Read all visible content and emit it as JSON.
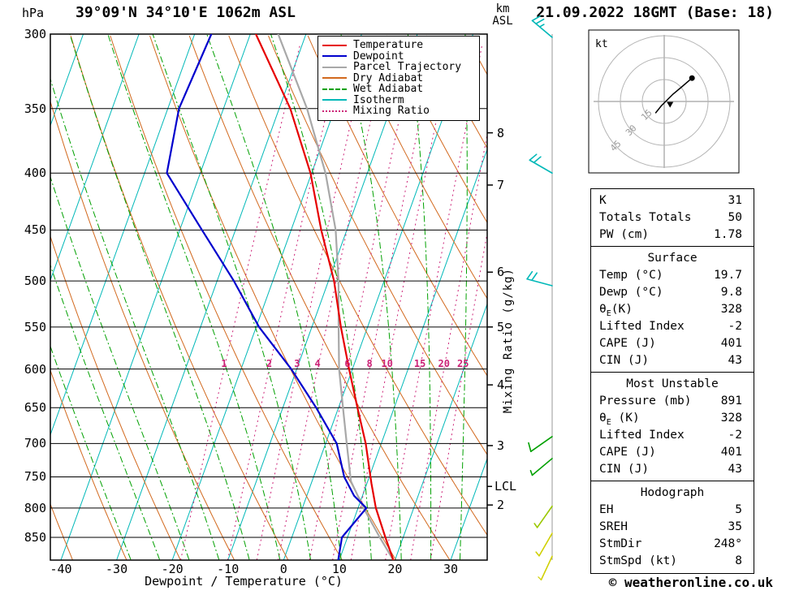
{
  "header": {
    "pressure_unit": "hPa",
    "station": "39°09'N 34°10'E 1062m ASL",
    "km_label": "km",
    "asl_label": "ASL",
    "datetime": "21.09.2022 18GMT (Base: 18)"
  },
  "axes": {
    "pressure_ticks": [
      300,
      350,
      400,
      450,
      500,
      550,
      600,
      650,
      700,
      750,
      800,
      850
    ],
    "temp_ticks": [
      -40,
      -30,
      -20,
      -10,
      0,
      10,
      20,
      30
    ],
    "xlabel": "Dewpoint / Temperature (°C)",
    "lcl_label": "LCL",
    "mixing_axis_label": "Mixing Ratio (g/kg)"
  },
  "colors": {
    "temperature": "#e60000",
    "dewpoint": "#0000cd",
    "parcel": "#a8a8a8",
    "dry_adiabat": "#d2691e",
    "wet_adiabat": "#00a000",
    "isotherm": "#00b8b8",
    "mixing_ratio": "#cc2277",
    "pressure_line": "#000000",
    "wind_axis": "#999999"
  },
  "legend": {
    "entries": [
      {
        "label": "Temperature",
        "color": "#e60000",
        "style": "solid"
      },
      {
        "label": "Dewpoint",
        "color": "#0000cd",
        "style": "solid"
      },
      {
        "label": "Parcel Trajectory",
        "color": "#a8a8a8",
        "style": "solid"
      },
      {
        "label": "Dry Adiabat",
        "color": "#d2691e",
        "style": "solid"
      },
      {
        "label": "Wet Adiabat",
        "color": "#00a000",
        "style": "dashdot"
      },
      {
        "label": "Isotherm",
        "color": "#00b8b8",
        "style": "solid"
      },
      {
        "label": "Mixing Ratio",
        "color": "#cc2277",
        "style": "dotted"
      }
    ]
  },
  "chart_data": {
    "type": "skewt_log_p",
    "pressure_range_hpa": [
      300,
      891
    ],
    "temp_axis_range_c": [
      -40,
      30
    ],
    "temperature_profile": [
      [
        891,
        19.7
      ],
      [
        850,
        16.8
      ],
      [
        800,
        13.2
      ],
      [
        760,
        10.8
      ],
      [
        700,
        7.2
      ],
      [
        650,
        3.4
      ],
      [
        600,
        -0.6
      ],
      [
        550,
        -4.8
      ],
      [
        500,
        -9.0
      ],
      [
        450,
        -14.6
      ],
      [
        400,
        -20.2
      ],
      [
        350,
        -28.0
      ],
      [
        300,
        -39.0
      ]
    ],
    "dewpoint_profile": [
      [
        891,
        9.8
      ],
      [
        850,
        9.0
      ],
      [
        800,
        11.5
      ],
      [
        780,
        8.5
      ],
      [
        750,
        5.5
      ],
      [
        700,
        2.0
      ],
      [
        650,
        -4.0
      ],
      [
        600,
        -11.0
      ],
      [
        550,
        -19.5
      ],
      [
        500,
        -27.0
      ],
      [
        450,
        -36.0
      ],
      [
        400,
        -46.0
      ],
      [
        350,
        -48.0
      ],
      [
        300,
        -47.0
      ]
    ],
    "parcel_profile": [
      [
        891,
        19.7
      ],
      [
        850,
        15.8
      ],
      [
        800,
        11.0
      ],
      [
        757,
        7.0
      ],
      [
        700,
        3.8
      ],
      [
        650,
        0.8
      ],
      [
        600,
        -2.4
      ],
      [
        550,
        -5.2
      ],
      [
        500,
        -8.2
      ],
      [
        450,
        -12.0
      ],
      [
        400,
        -17.5
      ],
      [
        350,
        -25.0
      ],
      [
        300,
        -35.0
      ]
    ],
    "lcl_pressure": 765,
    "km_levels": [
      [
        8,
        368
      ],
      [
        7,
        410
      ],
      [
        6,
        491
      ],
      [
        5,
        550
      ],
      [
        4,
        620
      ],
      [
        3,
        703
      ],
      [
        2,
        795
      ]
    ],
    "isotherms_c": {
      "min": -110,
      "max": 40,
      "step": 10
    },
    "dry_adiabats_theta_c": {
      "min": -40,
      "max": 120,
      "step": 10
    },
    "wet_adiabats_thetaw_c": {
      "min": -20,
      "max": 40,
      "step": 5
    },
    "mixing_ratio_lines_gkg": [
      1,
      2,
      3,
      4,
      6,
      8,
      10,
      15,
      20,
      25
    ],
    "mixing_ratio_label_pressure": 600
  },
  "winds": {
    "barbs": [
      {
        "pressure": 302,
        "speed_kt": 25,
        "dir_deg": 310,
        "color": "#00b8b8"
      },
      {
        "pressure": 400,
        "speed_kt": 20,
        "dir_deg": 300,
        "color": "#00b8b8"
      },
      {
        "pressure": 505,
        "speed_kt": 20,
        "dir_deg": 285,
        "color": "#00b8b8"
      },
      {
        "pressure": 690,
        "speed_kt": 10,
        "dir_deg": 235,
        "color": "#00a000"
      },
      {
        "pressure": 722,
        "speed_kt": 8,
        "dir_deg": 230,
        "color": "#00a000"
      },
      {
        "pressure": 797,
        "speed_kt": 5,
        "dir_deg": 215,
        "color": "#9ac800"
      },
      {
        "pressure": 843,
        "speed_kt": 5,
        "dir_deg": 210,
        "color": "#d0d000"
      },
      {
        "pressure": 884,
        "speed_kt": 3,
        "dir_deg": 205,
        "color": "#d0d000"
      }
    ]
  },
  "hodograph": {
    "unit_label": "kt",
    "rings_kt": [
      15,
      30,
      45
    ],
    "trace_uv_kt": [
      [
        -6,
        -8
      ],
      [
        -2,
        -3
      ],
      [
        1,
        0
      ],
      [
        6,
        5
      ],
      [
        12,
        10
      ],
      [
        19,
        16
      ]
    ],
    "storm_motion_uv_kt": [
      4,
      -2
    ]
  },
  "tables": [
    {
      "title": "",
      "rows": [
        [
          "K",
          "31"
        ],
        [
          "Totals Totals",
          "50"
        ],
        [
          "PW (cm)",
          "1.78"
        ]
      ]
    },
    {
      "title": "Surface",
      "rows": [
        [
          "Temp (°C)",
          "19.7"
        ],
        [
          "Dewp (°C)",
          "9.8"
        ],
        [
          "θE(K)",
          "328"
        ],
        [
          "Lifted Index",
          "-2"
        ],
        [
          "CAPE (J)",
          "401"
        ],
        [
          "CIN (J)",
          "43"
        ]
      ]
    },
    {
      "title": "Most Unstable",
      "rows": [
        [
          "Pressure (mb)",
          "891"
        ],
        [
          "θE (K)",
          "328"
        ],
        [
          "Lifted Index",
          "-2"
        ],
        [
          "CAPE (J)",
          "401"
        ],
        [
          "CIN (J)",
          "43"
        ]
      ]
    },
    {
      "title": "Hodograph",
      "rows": [
        [
          "EH",
          "5"
        ],
        [
          "SREH",
          "35"
        ],
        [
          "StmDir",
          "248°"
        ],
        [
          "StmSpd (kt)",
          "8"
        ]
      ]
    }
  ],
  "footer": {
    "copyright": "© weatheronline.co.uk"
  }
}
